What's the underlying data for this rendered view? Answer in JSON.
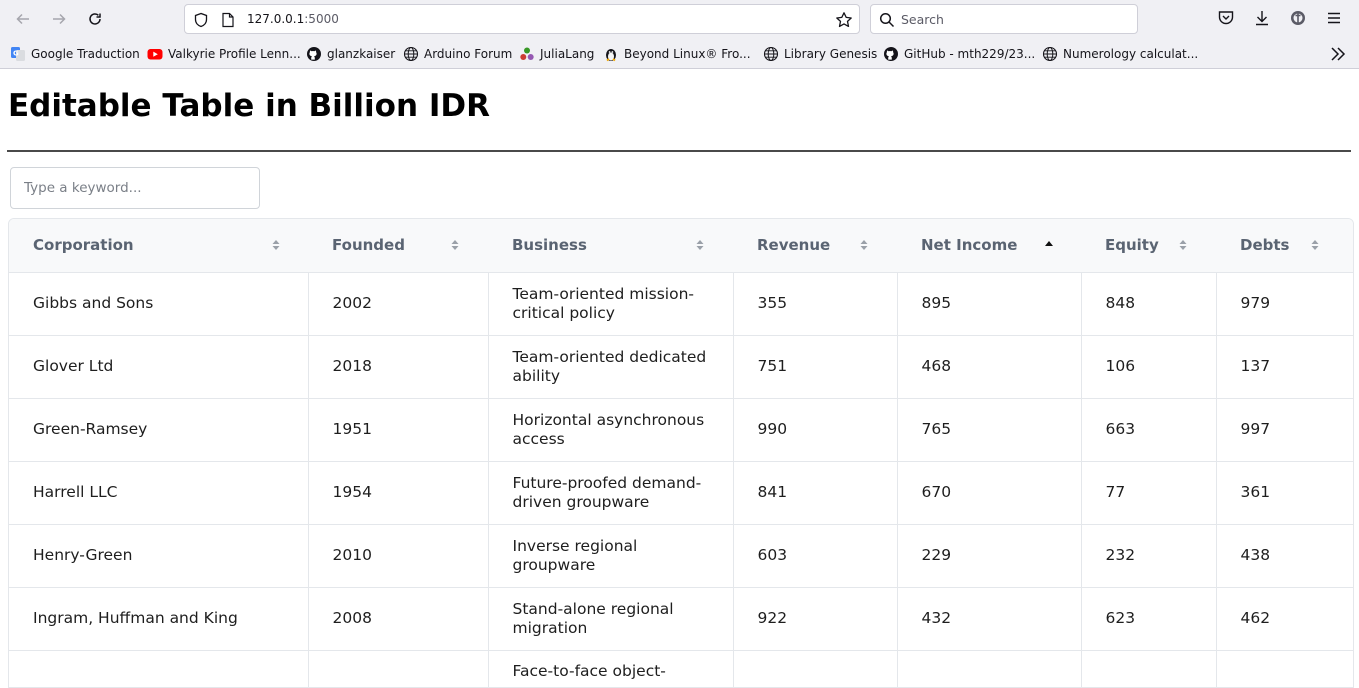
{
  "browser": {
    "url_host": "127.0.0.1",
    "url_port": ":5000",
    "search_placeholder": "Search"
  },
  "bookmarks": [
    {
      "label": "Google Traduction",
      "icon": "google-translate-icon"
    },
    {
      "label": "Valkyrie Profile Lenn...",
      "icon": "youtube-icon"
    },
    {
      "label": "glanzkaiser",
      "icon": "github-icon"
    },
    {
      "label": "Arduino Forum",
      "icon": "globe-icon"
    },
    {
      "label": "JuliaLang",
      "icon": "julia-icon"
    },
    {
      "label": "Beyond Linux® Fro...",
      "icon": "linux-icon"
    },
    {
      "label": "Library Genesis",
      "icon": "globe-icon"
    },
    {
      "label": "GitHub - mth229/23...",
      "icon": "github-icon"
    },
    {
      "label": "Numerology calculat...",
      "icon": "globe-icon"
    }
  ],
  "page": {
    "title": "Editable Table in Billion IDR",
    "search_placeholder": "Type a keyword..."
  },
  "table": {
    "columns": [
      "Corporation",
      "Founded",
      "Business",
      "Revenue",
      "Net Income",
      "Equity",
      "Debts"
    ],
    "sorted_column": "Net Income",
    "sort_direction": "ascending",
    "rows": [
      {
        "corporation": "Gibbs and Sons",
        "founded": "2002",
        "business": "Team-oriented mission-critical policy",
        "revenue": "355",
        "net_income": "895",
        "equity": "848",
        "debts": "979"
      },
      {
        "corporation": "Glover Ltd",
        "founded": "2018",
        "business": "Team-oriented dedicated ability",
        "revenue": "751",
        "net_income": "468",
        "equity": "106",
        "debts": "137"
      },
      {
        "corporation": "Green-Ramsey",
        "founded": "1951",
        "business": "Horizontal asynchronous access",
        "revenue": "990",
        "net_income": "765",
        "equity": "663",
        "debts": "997"
      },
      {
        "corporation": "Harrell LLC",
        "founded": "1954",
        "business": "Future-proofed demand-driven groupware",
        "revenue": "841",
        "net_income": "670",
        "equity": "77",
        "debts": "361"
      },
      {
        "corporation": "Henry-Green",
        "founded": "2010",
        "business": "Inverse regional groupware",
        "revenue": "603",
        "net_income": "229",
        "equity": "232",
        "debts": "438"
      },
      {
        "corporation": "Ingram, Huffman and King",
        "founded": "2008",
        "business": "Stand-alone regional migration",
        "revenue": "922",
        "net_income": "432",
        "equity": "623",
        "debts": "462"
      },
      {
        "corporation": "",
        "founded": "",
        "business": "Face-to-face object-",
        "revenue": "",
        "net_income": "",
        "equity": "",
        "debts": ""
      }
    ]
  },
  "colors": {
    "chrome_bg": "#f0f0f4",
    "header_bg": "#f8f9fa",
    "header_text": "#5a6472",
    "border": "#e4e7eb"
  }
}
